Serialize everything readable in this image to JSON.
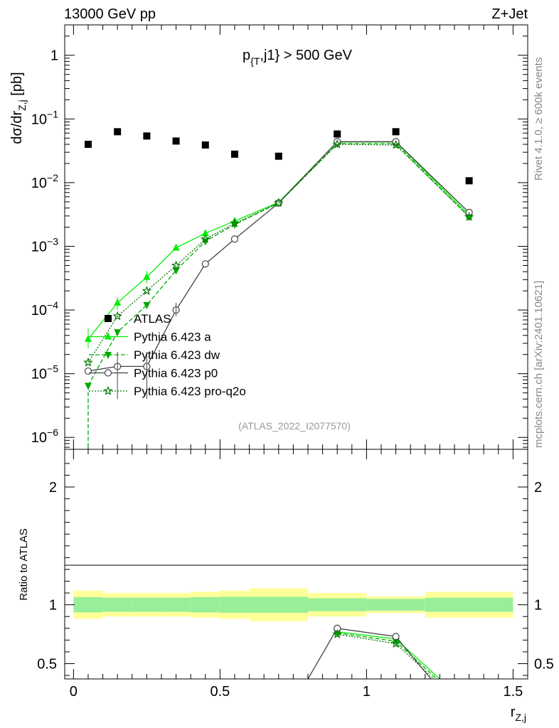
{
  "header": {
    "left": "13000 GeV pp",
    "right": "Z+Jet"
  },
  "side_labels": {
    "rivet": "Rivet 4.1.0, ≥ 600k events",
    "mcplots": "mcplots.cern.ch [arXiv:2401.10621]"
  },
  "chart_data": {
    "type": "line",
    "title": "p_{T},j1} > 500 GeV",
    "watermark": "(ATLAS_2022_I2077570)",
    "xlabel": "r_{Z,j}",
    "ylabel": "dσ/dr_{Z,j} [pb]",
    "ratio_ylabel": "Ratio to ATLAS",
    "xlim": [
      -0.03,
      1.55
    ],
    "ylim": [
      6.5e-07,
      3
    ],
    "ratio_ylim": [
      0.37,
      2.32
    ],
    "x_ticks": [
      {
        "v": 0,
        "label": "0"
      },
      {
        "v": 0.5,
        "label": "0.5"
      },
      {
        "v": 1,
        "label": "1"
      },
      {
        "v": 1.5,
        "label": "1.5"
      }
    ],
    "y_ticks": [
      {
        "exp": 0,
        "label": "1"
      },
      {
        "exp": -1,
        "base": "10",
        "sup": "−1"
      },
      {
        "exp": -2,
        "base": "10",
        "sup": "−2"
      },
      {
        "exp": -3,
        "base": "10",
        "sup": "−3"
      },
      {
        "exp": -4,
        "base": "10",
        "sup": "−4"
      },
      {
        "exp": -5,
        "base": "10",
        "sup": "−5"
      },
      {
        "exp": -6,
        "base": "10",
        "sup": "−6"
      }
    ],
    "ratio_ticks": [
      {
        "v": 0.5,
        "label": "0.5"
      },
      {
        "v": 1,
        "label": "1"
      },
      {
        "v": 2,
        "label": "2"
      }
    ],
    "bins": [
      [
        0.0,
        0.1
      ],
      [
        0.1,
        0.2
      ],
      [
        0.2,
        0.3
      ],
      [
        0.3,
        0.4
      ],
      [
        0.4,
        0.5
      ],
      [
        0.5,
        0.6
      ],
      [
        0.6,
        0.8
      ],
      [
        0.8,
        1.0
      ],
      [
        1.0,
        1.2
      ],
      [
        1.2,
        1.5
      ]
    ],
    "data": {
      "name": "ATLAS",
      "x": [
        0.05,
        0.15,
        0.25,
        0.35,
        0.45,
        0.55,
        0.7,
        0.9,
        1.1,
        1.35
      ],
      "y": [
        0.04,
        0.063,
        0.054,
        0.045,
        0.039,
        0.028,
        0.026,
        0.058,
        0.063,
        0.0107
      ],
      "band_inner": [
        0.065,
        0.06,
        0.06,
        0.06,
        0.065,
        0.068,
        0.068,
        0.055,
        0.05,
        0.06
      ],
      "band_outer": [
        0.12,
        0.1,
        0.1,
        0.1,
        0.11,
        0.12,
        0.14,
        0.1,
        0.07,
        0.11
      ]
    },
    "series": [
      {
        "name": "Pythia 6.423 a",
        "color": "#00ee00",
        "dash": "",
        "marker": "triangle-up",
        "x": [
          0.05,
          0.15,
          0.25,
          0.35,
          0.45,
          0.55,
          0.7,
          0.9,
          1.1,
          1.35
        ],
        "y": [
          3.5e-05,
          0.00013,
          0.00033,
          0.00095,
          0.0016,
          0.0025,
          0.0049,
          0.0435,
          0.0435,
          0.0031
        ],
        "ratio_x": [
          0.9,
          1.1,
          1.25
        ],
        "ratio_y": [
          0.77,
          0.71,
          0.37
        ]
      },
      {
        "name": "Pythia 6.423 dw",
        "color": "#00aa00",
        "dash": "6,3",
        "marker": "triangle-down",
        "x": [
          0.05,
          0.15,
          0.25,
          0.35,
          0.45,
          0.55,
          0.7,
          0.9,
          1.1,
          1.35
        ],
        "y": [
          6.5e-06,
          4.5e-05,
          0.00012,
          0.00042,
          0.0012,
          0.0022,
          0.0048,
          0.041,
          0.041,
          0.0029
        ],
        "ratio_x": [
          0.9,
          1.1,
          1.24
        ],
        "ratio_y": [
          0.76,
          0.69,
          0.37
        ]
      },
      {
        "name": "Pythia 6.423 p0",
        "color": "#444444",
        "dash": "",
        "marker": "circle-open",
        "x": [
          0.05,
          0.15,
          0.25,
          0.35,
          0.45,
          0.55,
          0.7,
          0.9,
          1.1,
          1.35
        ],
        "y": [
          1.1e-05,
          1.3e-05,
          1.3e-05,
          0.0001,
          0.00053,
          0.0013,
          0.0048,
          0.044,
          0.044,
          0.0034
        ],
        "ratio_x": [
          0.8,
          0.9,
          1.1,
          1.22
        ],
        "ratio_y": [
          0.37,
          0.8,
          0.73,
          0.37
        ]
      },
      {
        "name": "Pythia 6.423 pro-q2o",
        "color": "#007700",
        "dash": "2,2",
        "marker": "star-open",
        "x": [
          0.05,
          0.15,
          0.25,
          0.35,
          0.45,
          0.55,
          0.7,
          0.9,
          1.1,
          1.35
        ],
        "y": [
          1.5e-05,
          8e-05,
          0.0002,
          0.0005,
          0.0013,
          0.0023,
          0.0048,
          0.04,
          0.039,
          0.0029
        ],
        "ratio_x": [
          0.9,
          1.1,
          1.23
        ],
        "ratio_y": [
          0.75,
          0.67,
          0.37
        ]
      }
    ]
  }
}
